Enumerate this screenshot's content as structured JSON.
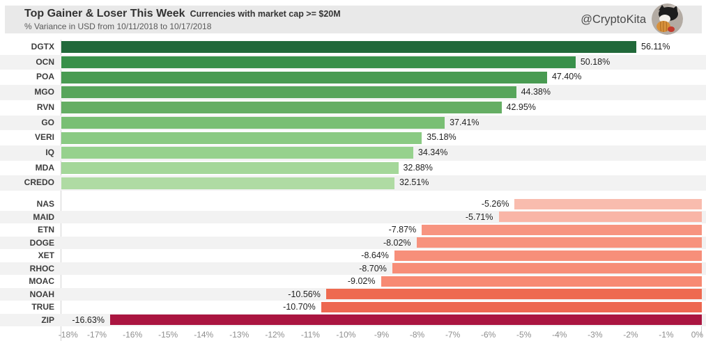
{
  "header": {
    "title": "Top Gainer & Loser This Week",
    "title_suffix": "Currencies with market cap >= $20M",
    "subtitle": "% Variance in USD from 10/11/2018 to 10/17/2018",
    "handle": "@CryptoKita",
    "panel_bg": "#e9e9e9"
  },
  "chart_data": {
    "type": "bar",
    "orientation": "horizontal",
    "title": "Top Gainer & Loser This Week Currencies with market cap >= $20M",
    "subtitle": "% Variance in USD from 10/11/2018 to 10/17/2018",
    "xlabel": "",
    "ylabel": "",
    "grid": false,
    "legend": false,
    "series": [
      {
        "name": "top-gainers",
        "anchor": "left",
        "axis_max": 62.5,
        "categories": [
          "DGTX",
          "OCN",
          "POA",
          "MGO",
          "RVN",
          "GO",
          "VERI",
          "IQ",
          "MDA",
          "CREDO"
        ],
        "values": [
          56.11,
          50.18,
          47.4,
          44.38,
          42.95,
          37.41,
          35.18,
          34.34,
          32.88,
          32.51
        ],
        "labels": [
          "56.11%",
          "50.18%",
          "47.40%",
          "44.38%",
          "42.95%",
          "37.41%",
          "35.18%",
          "34.34%",
          "32.88%",
          "32.51%"
        ],
        "colors": [
          "#21693a",
          "#38904a",
          "#499b52",
          "#57a55b",
          "#65ae64",
          "#79bf74",
          "#8aca83",
          "#96d18d",
          "#a4d799",
          "#afdba3"
        ]
      },
      {
        "name": "top-losers",
        "anchor": "right",
        "axis_min": -18,
        "categories": [
          "NAS",
          "MAID",
          "ETN",
          "DOGE",
          "XET",
          "RHOC",
          "MOAC",
          "NOAH",
          "TRUE",
          "ZIP"
        ],
        "values": [
          -5.26,
          -5.71,
          -7.87,
          -8.02,
          -8.64,
          -8.7,
          -9.02,
          -10.56,
          -10.7,
          -16.63
        ],
        "labels": [
          "-5.26%",
          "-5.71%",
          "-7.87%",
          "-8.02%",
          "-8.64%",
          "-8.70%",
          "-9.02%",
          "-10.56%",
          "-10.70%",
          "-16.63%"
        ],
        "colors": [
          "#f9bcae",
          "#f9b5a7",
          "#f79480",
          "#f7927d",
          "#f78f7a",
          "#f78d77",
          "#f78a73",
          "#ee6a50",
          "#ed6750",
          "#aa1540"
        ]
      }
    ],
    "x_axis": {
      "range": [
        -18,
        0
      ],
      "tick_labels": [
        "-18%",
        "-17%",
        "-16%",
        "-15%",
        "-14%",
        "-13%",
        "-12%",
        "-11%",
        "-10%",
        "-9%",
        "-8%",
        "-7%",
        "-6%",
        "-5%",
        "-4%",
        "-3%",
        "-2%",
        "-1%",
        "0%"
      ]
    },
    "stripe_color": "#f2f2f2"
  }
}
